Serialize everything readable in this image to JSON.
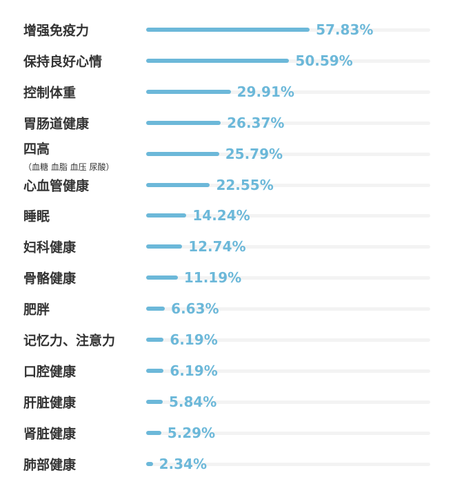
{
  "chart_data": {
    "type": "bar",
    "orientation": "horizontal",
    "grid": false,
    "bar_color": "#6cb8d9",
    "value_color": "#6cb8d9",
    "track_color": "#f3f3f3",
    "label_color": "#333333",
    "xlim": [
      0,
      100
    ],
    "categories": [
      {
        "label": "增强免疫力",
        "sublabel": "",
        "value": 57.83,
        "value_label": "57.83%"
      },
      {
        "label": "保持良好心情",
        "sublabel": "",
        "value": 50.59,
        "value_label": "50.59%"
      },
      {
        "label": "控制体重",
        "sublabel": "",
        "value": 29.91,
        "value_label": "29.91%"
      },
      {
        "label": "胃肠道健康",
        "sublabel": "",
        "value": 26.37,
        "value_label": "26.37%"
      },
      {
        "label": "四高",
        "sublabel": "（血糖 血脂 血压 尿酸）",
        "value": 25.79,
        "value_label": "25.79%"
      },
      {
        "label": "心血管健康",
        "sublabel": "",
        "value": 22.55,
        "value_label": "22.55%"
      },
      {
        "label": "睡眠",
        "sublabel": "",
        "value": 14.24,
        "value_label": "14.24%"
      },
      {
        "label": "妇科健康",
        "sublabel": "",
        "value": 12.74,
        "value_label": "12.74%"
      },
      {
        "label": "骨骼健康",
        "sublabel": "",
        "value": 11.19,
        "value_label": "11.19%"
      },
      {
        "label": "肥胖",
        "sublabel": "",
        "value": 6.63,
        "value_label": "6.63%"
      },
      {
        "label": "记忆力、注意力",
        "sublabel": "",
        "value": 6.19,
        "value_label": "6.19%"
      },
      {
        "label": "口腔健康",
        "sublabel": "",
        "value": 6.19,
        "value_label": "6.19%"
      },
      {
        "label": "肝脏健康",
        "sublabel": "",
        "value": 5.84,
        "value_label": "5.84%"
      },
      {
        "label": "肾脏健康",
        "sublabel": "",
        "value": 5.29,
        "value_label": "5.29%"
      },
      {
        "label": "肺部健康",
        "sublabel": "",
        "value": 2.34,
        "value_label": "2.34%"
      }
    ]
  }
}
